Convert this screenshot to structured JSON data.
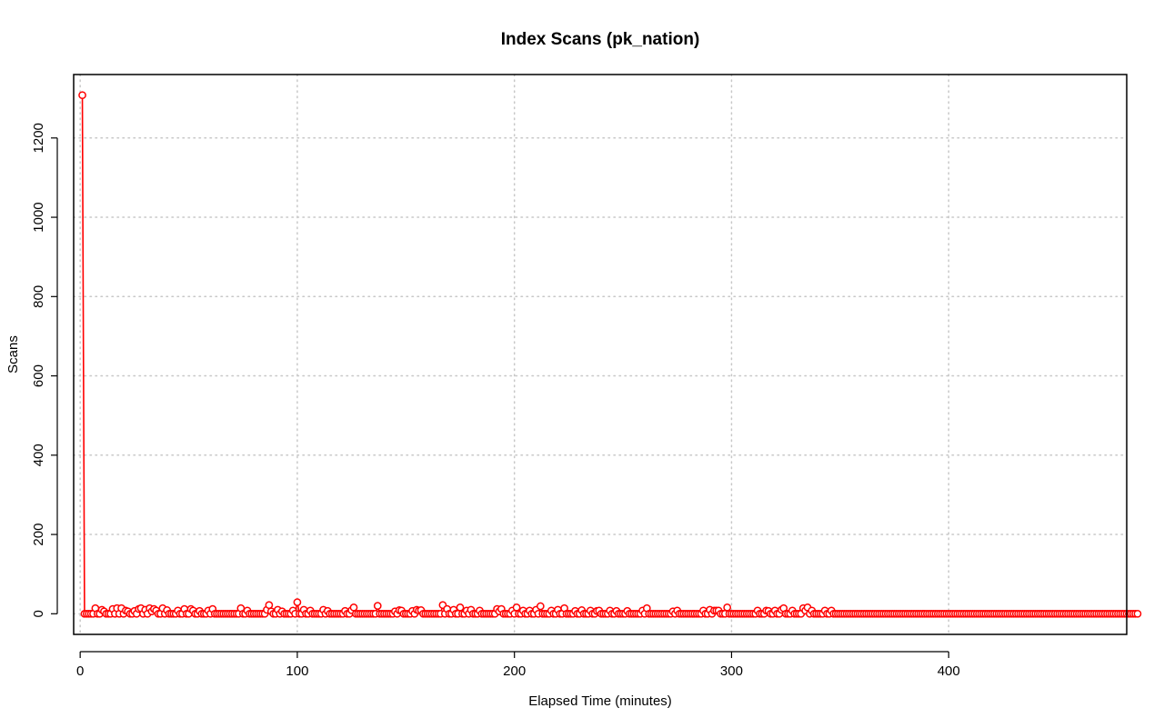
{
  "chart_data": {
    "type": "line",
    "title": "Index Scans (pk_nation)",
    "xlabel": "Elapsed Time (minutes)",
    "ylabel": "Scans",
    "xlim": [
      -3,
      482
    ],
    "ylim": [
      -52,
      1360
    ],
    "x_ticks": [
      0,
      100,
      200,
      300,
      400
    ],
    "y_ticks": [
      0,
      200,
      400,
      600,
      800,
      1000,
      1200
    ],
    "grid": true,
    "legend": "none",
    "line_style": "points connected by lines",
    "color": "#ff0000",
    "x_start": 1,
    "x_step": 1,
    "values": [
      1308,
      0,
      0,
      0,
      0,
      0,
      14,
      0,
      0,
      10,
      6,
      0,
      0,
      0,
      12,
      0,
      14,
      0,
      14,
      0,
      8,
      6,
      0,
      0,
      7,
      0,
      12,
      14,
      0,
      10,
      0,
      14,
      6,
      12,
      8,
      0,
      0,
      14,
      0,
      9,
      0,
      0,
      0,
      0,
      8,
      0,
      0,
      12,
      0,
      0,
      12,
      8,
      0,
      0,
      7,
      0,
      0,
      0,
      8,
      0,
      12,
      0,
      0,
      0,
      0,
      0,
      0,
      0,
      0,
      0,
      0,
      0,
      0,
      14,
      0,
      0,
      8,
      0,
      0,
      0,
      0,
      0,
      0,
      0,
      0,
      10,
      22,
      6,
      0,
      0,
      10,
      0,
      6,
      0,
      0,
      0,
      0,
      8,
      0,
      29,
      0,
      0,
      10,
      0,
      0,
      8,
      0,
      0,
      0,
      0,
      0,
      10,
      0,
      7,
      0,
      0,
      0,
      0,
      0,
      0,
      0,
      7,
      0,
      0,
      9,
      16,
      0,
      0,
      0,
      0,
      0,
      0,
      0,
      0,
      0,
      0,
      20,
      0,
      0,
      0,
      0,
      0,
      0,
      0,
      6,
      0,
      9,
      8,
      0,
      0,
      0,
      0,
      7,
      0,
      10,
      8,
      9,
      0,
      0,
      0,
      0,
      0,
      0,
      0,
      0,
      0,
      22,
      0,
      12,
      0,
      0,
      10,
      0,
      0,
      16,
      0,
      0,
      8,
      0,
      10,
      0,
      0,
      0,
      8,
      0,
      0,
      0,
      0,
      0,
      0,
      0,
      12,
      6,
      12,
      0,
      0,
      0,
      0,
      8,
      0,
      16,
      0,
      0,
      8,
      0,
      0,
      8,
      0,
      0,
      10,
      0,
      19,
      0,
      0,
      0,
      0,
      8,
      0,
      0,
      10,
      0,
      0,
      14,
      0,
      0,
      0,
      0,
      7,
      0,
      0,
      9,
      0,
      0,
      0,
      8,
      0,
      0,
      7,
      8,
      0,
      0,
      0,
      0,
      8,
      0,
      0,
      7,
      0,
      0,
      0,
      0,
      7,
      0,
      0,
      0,
      0,
      0,
      0,
      8,
      0,
      14,
      0,
      0,
      0,
      0,
      0,
      0,
      0,
      0,
      0,
      0,
      0,
      6,
      0,
      8,
      0,
      0,
      0,
      0,
      0,
      0,
      0,
      0,
      0,
      0,
      0,
      8,
      0,
      0,
      10,
      0,
      8,
      8,
      8,
      0,
      0,
      0,
      16,
      0,
      0,
      0,
      0,
      0,
      0,
      0,
      0,
      0,
      0,
      0,
      0,
      0,
      8,
      0,
      0,
      0,
      8,
      7,
      0,
      0,
      8,
      0,
      0,
      10,
      14,
      0,
      0,
      0,
      8,
      0,
      0,
      0,
      0,
      14,
      8,
      16,
      0,
      8,
      0,
      0,
      0,
      0,
      0,
      8,
      0,
      0,
      8,
      0,
      0,
      0,
      0,
      0,
      0,
      0,
      0,
      0,
      0,
      0,
      0,
      0,
      0,
      0,
      0,
      0,
      0,
      0,
      0,
      0,
      0,
      0,
      0,
      0,
      0,
      0,
      0,
      0,
      0,
      0,
      0,
      0,
      0,
      0,
      0,
      0,
      0,
      0,
      0,
      0,
      0,
      0,
      0,
      0,
      0,
      0,
      0,
      0,
      0,
      0,
      0,
      0,
      0,
      0,
      0,
      0,
      0,
      0,
      0,
      0,
      0,
      0,
      0,
      0,
      0,
      0,
      0,
      0,
      0,
      0,
      0,
      0,
      0,
      0,
      0,
      0,
      0,
      0,
      0,
      0,
      0,
      0,
      0,
      0,
      0,
      0,
      0,
      0,
      0,
      0,
      0,
      0,
      0,
      0,
      0,
      0,
      0,
      0,
      0,
      0,
      0,
      0,
      0,
      0,
      0,
      0,
      0,
      0,
      0,
      0,
      0,
      0,
      0,
      0,
      0,
      0,
      0,
      0,
      0,
      0,
      0,
      0,
      0,
      0,
      0,
      0,
      0,
      0,
      0,
      0,
      0,
      0,
      0,
      0,
      0,
      0,
      0,
      0,
      0,
      0
    ]
  }
}
